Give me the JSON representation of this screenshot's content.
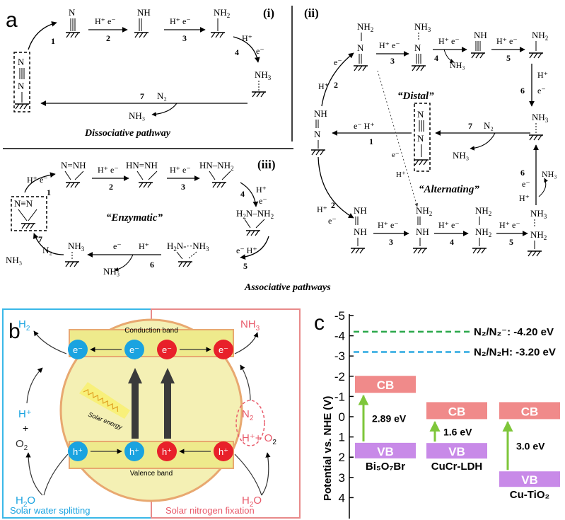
{
  "panel_a": {
    "label": "a",
    "sub_i": "(i)",
    "sub_ii": "(ii)",
    "sub_iii": "(iii)",
    "dissociative_caption": "Dissociative pathway",
    "associative_caption": "Associative pathways",
    "distal_label": "“Distal”",
    "alternating_label": "“Alternating”",
    "enzymatic_label": "“Enzymatic”",
    "species": {
      "n2": "N",
      "nh": "NH",
      "nh2": "NH",
      "nh3": "NH",
      "n2_label": "N",
      "h": "H",
      "hn_nh": "HN=NH",
      "hn_nh2": "HN–NH",
      "h2n_nh2": "H",
      "h2n_nh3": "H",
      "nh_nh": "N=NH",
      "sub2": "2",
      "sub3": "3",
      "minus": "–"
    },
    "reagents": {
      "he": "H⁺ e⁻",
      "e_h": "e⁻  H⁺",
      "h": "H⁺",
      "e": "e⁻",
      "n2": "N₂",
      "nh3": "NH₃"
    },
    "steps": [
      "1",
      "2",
      "3",
      "4",
      "5",
      "6",
      "7"
    ]
  },
  "panel_b": {
    "label": "b",
    "conduction_band": "Conduction band",
    "valence_band": "Valence band",
    "solar_energy": "Solar energy",
    "electron": "e⁻",
    "hole": "h⁺",
    "h2": "H",
    "hplus": "H⁺",
    "plus": "+",
    "o2": "O",
    "h2o": "H",
    "nh3": "NH",
    "n2": "N",
    "hplus_o2": "H⁺+ O",
    "water_splitting": "Solar water splitting",
    "nitrogen_fixation": "Solar nitrogen fixation",
    "colors": {
      "blue": "#1aa3e0",
      "red": "#e8202a",
      "yellow": "#f2f0a0",
      "orange": "#e8a870",
      "left_border": "#3ab8e8",
      "right_border": "#e88a8a"
    }
  },
  "panel_c": {
    "label": "c",
    "ylabel": "Potential vs. NHE (V)",
    "ticks": [
      "-5",
      "-4",
      "-3",
      "-2",
      "-1",
      "0",
      "1",
      "2",
      "3",
      "4"
    ],
    "n2_line": "N₂/N₂⁻: -4.20 eV",
    "n2h_line": "N₂/N₂H: -3.20 eV",
    "cb": "CB",
    "vb": "VB",
    "materials": [
      {
        "name": "Bi₅O₇Br",
        "gap": "2.89 eV",
        "cb": -1.6,
        "vb": 1.29
      },
      {
        "name": "CuCr-LDH",
        "gap": "1.6 eV",
        "cb": -0.3,
        "vb": 1.3
      },
      {
        "name": "Cu-TiO₂",
        "gap": "3.0 eV",
        "cb": -0.3,
        "vb": 2.7
      }
    ],
    "colors": {
      "cb": "#f08a8a",
      "vb": "#c88ae8",
      "arrow": "#7ec63a",
      "green_line": "#2aa84a",
      "blue_line": "#2aa8e0"
    }
  }
}
